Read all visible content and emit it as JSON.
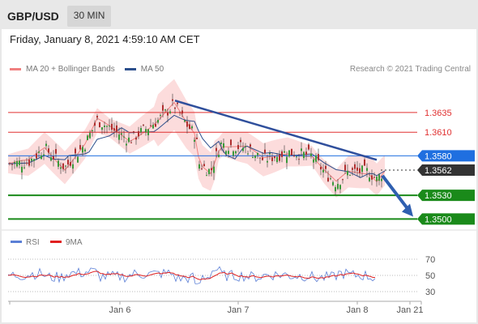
{
  "header": {
    "symbol": "GBP/USD",
    "timeframe": "30 MIN"
  },
  "timestamp": "Friday, January 8, 2021 4:59:10 AM CET",
  "legend": {
    "bollinger": {
      "label": "MA 20 + Bollinger Bands",
      "color": "#f08080"
    },
    "ma50": {
      "label": "MA 50",
      "color": "#2c4f8c"
    }
  },
  "credit": "Research © 2021 Trading Central",
  "rsi_legend": {
    "rsi": {
      "label": "RSI",
      "color": "#5b7fd6"
    },
    "ma9": {
      "label": "9MA",
      "color": "#e02020"
    }
  },
  "chart_data": [
    {
      "type": "candlestick",
      "price_range": [
        1.3485,
        1.368
      ],
      "levels": [
        {
          "value": 1.3635,
          "label": "1.3635",
          "kind": "resistance",
          "color": "#e03030"
        },
        {
          "value": 1.361,
          "label": "1.3610",
          "kind": "resistance",
          "color": "#e03030"
        },
        {
          "value": 1.358,
          "label": "1.3580",
          "kind": "pivot",
          "color": "#1f6fe0"
        },
        {
          "value": 1.3562,
          "label": "1.3562",
          "kind": "last",
          "color": "#333333"
        },
        {
          "value": 1.353,
          "label": "1.3530",
          "kind": "support",
          "color": "#1a8a1a"
        },
        {
          "value": 1.35,
          "label": "1.3500",
          "kind": "support",
          "color": "#1a8a1a"
        }
      ],
      "trendline": {
        "from": 1.365,
        "to": 1.3575
      },
      "x_ticks": [
        "Jan 6",
        "Jan 7",
        "Jan 8",
        "Jan 21"
      ]
    },
    {
      "type": "line",
      "name": "RSI panel",
      "y_ticks": [
        70,
        50,
        30
      ],
      "ylim": [
        20,
        80
      ]
    }
  ]
}
